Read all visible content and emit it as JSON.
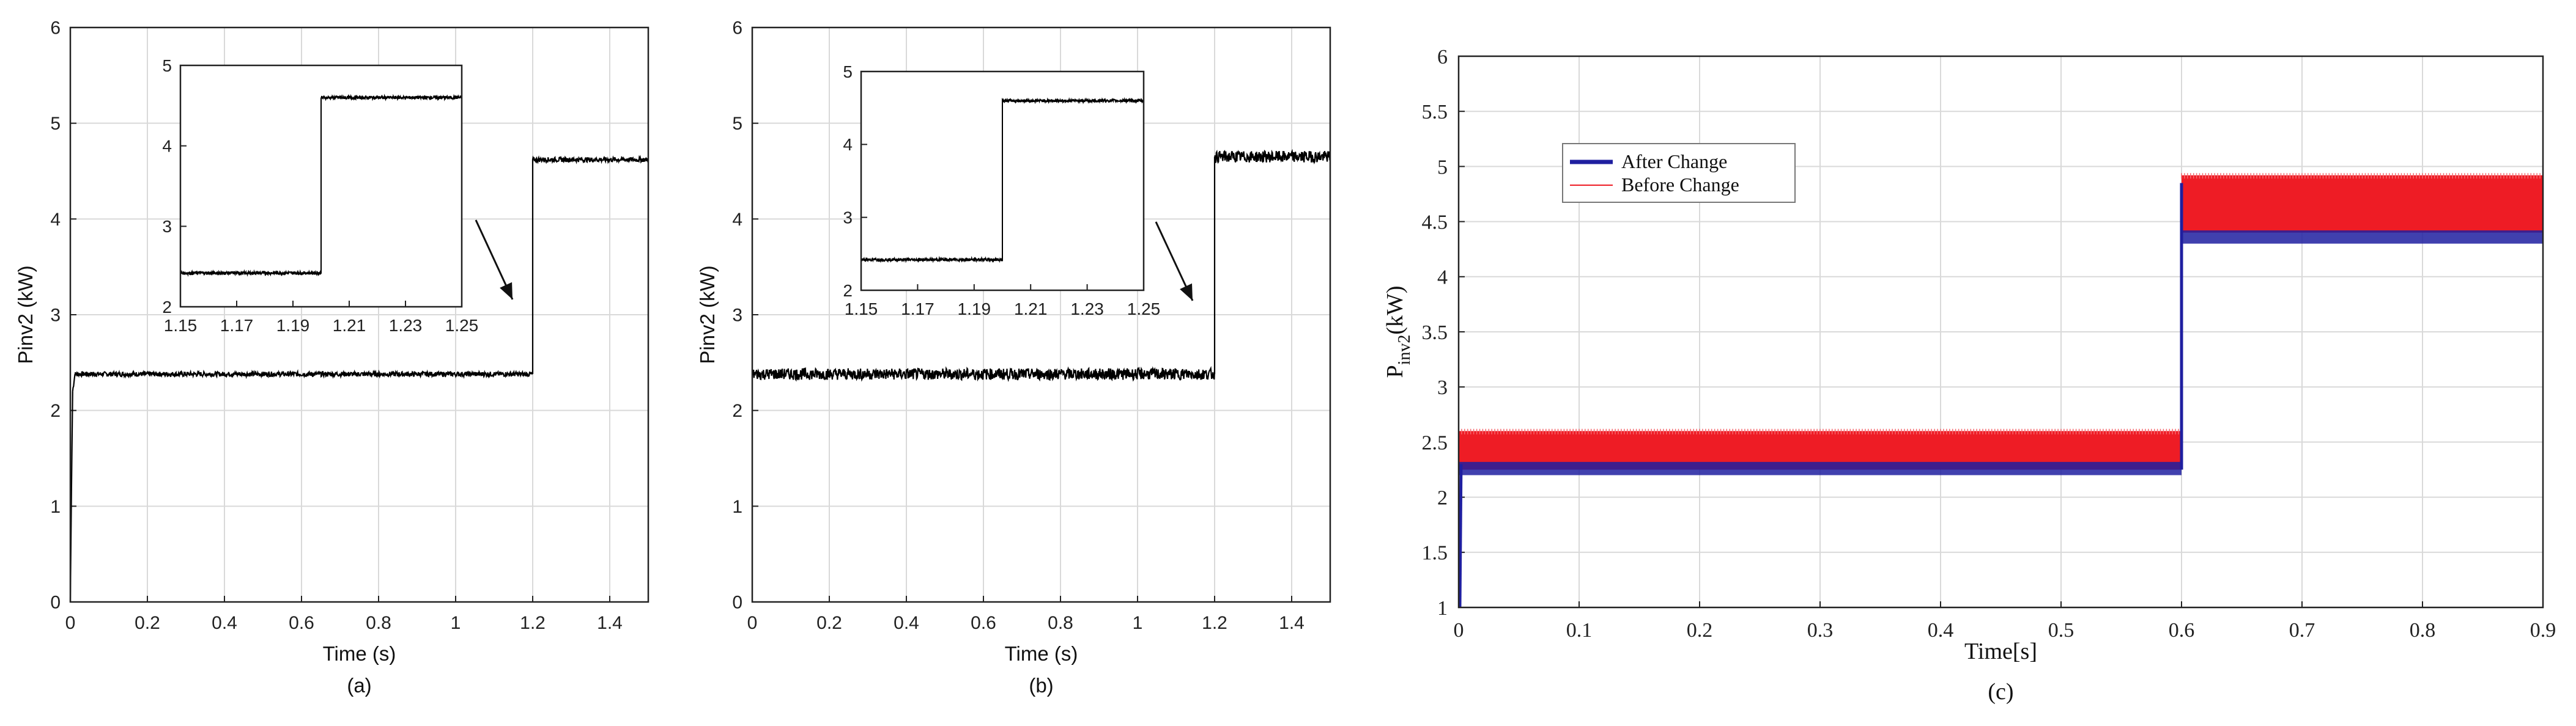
{
  "colors": {
    "trace": "#000000",
    "after_change": "#1f1fa0",
    "before_change": "#ee1c25",
    "grid": "#d9d9d9",
    "axis": "#222222"
  },
  "chart_data": [
    {
      "id": "a",
      "type": "line",
      "caption": "(a)",
      "xlabel": "Time (s)",
      "ylabel": "Pinv2 (kW)",
      "xlim": [
        0,
        1.5
      ],
      "ylim": [
        0,
        6
      ],
      "xticks": [
        0,
        0.2,
        0.4,
        0.6,
        0.8,
        1,
        1.2,
        1.4
      ],
      "xtick_labels": [
        "0",
        "0.2",
        "0.4",
        "0.6",
        "0.8",
        "1",
        "1.2",
        "1.4"
      ],
      "yticks": [
        0,
        1,
        2,
        3,
        4,
        5,
        6
      ],
      "ytick_labels": [
        "0",
        "1",
        "2",
        "3",
        "4",
        "5",
        "6"
      ],
      "grid": true,
      "series": [
        {
          "name": "Pinv2",
          "x": [
            0,
            0.003,
            0.006,
            0.012,
            1.2,
            1.2,
            1.5
          ],
          "y": [
            0,
            1.2,
            2.2,
            2.38,
            2.38,
            4.62,
            4.62
          ],
          "noise_kw": 0.025
        }
      ],
      "inset": {
        "xlim": [
          1.15,
          1.25
        ],
        "ylim": [
          2,
          5
        ],
        "xticks": [
          1.15,
          1.17,
          1.19,
          1.21,
          1.23,
          1.25
        ],
        "xtick_labels": [
          "1.15",
          "1.17",
          "1.19",
          "1.21",
          "1.23",
          "1.25"
        ],
        "yticks": [
          2,
          3,
          4,
          5
        ],
        "ytick_labels": [
          "2",
          "3",
          "4",
          "5"
        ],
        "series": {
          "x": [
            1.15,
            1.2,
            1.2,
            1.25
          ],
          "y": [
            2.42,
            2.42,
            4.6,
            4.6
          ],
          "noise_kw": 0.02
        }
      }
    },
    {
      "id": "b",
      "type": "line",
      "caption": "(b)",
      "xlabel": "Time (s)",
      "ylabel": "Pinv2 (kW)",
      "xlim": [
        0,
        1.5
      ],
      "ylim": [
        0,
        6
      ],
      "xticks": [
        0,
        0.2,
        0.4,
        0.6,
        0.8,
        1,
        1.2,
        1.4
      ],
      "xtick_labels": [
        "0",
        "0.2",
        "0.4",
        "0.6",
        "0.8",
        "1",
        "1.2",
        "1.4"
      ],
      "yticks": [
        0,
        1,
        2,
        3,
        4,
        5,
        6
      ],
      "ytick_labels": [
        "0",
        "1",
        "2",
        "3",
        "4",
        "5",
        "6"
      ],
      "grid": true,
      "series": [
        {
          "name": "Pinv2",
          "x": [
            0,
            1.2,
            1.2,
            1.5
          ],
          "y": [
            2.38,
            2.38,
            4.65,
            4.65
          ],
          "noise_kw": 0.06
        }
      ],
      "inset": {
        "xlim": [
          1.15,
          1.25
        ],
        "ylim": [
          2,
          5
        ],
        "xticks": [
          1.15,
          1.17,
          1.19,
          1.21,
          1.23,
          1.25
        ],
        "xtick_labels": [
          "1.15",
          "1.17",
          "1.19",
          "1.21",
          "1.23",
          "1.25"
        ],
        "yticks": [
          2,
          3,
          4,
          5
        ],
        "ytick_labels": [
          "2",
          "3",
          "4",
          "5"
        ],
        "series": {
          "x": [
            1.15,
            1.2,
            1.2,
            1.25
          ],
          "y": [
            2.42,
            2.42,
            4.6,
            4.6
          ],
          "noise_kw": 0.02
        }
      }
    },
    {
      "id": "c",
      "type": "line",
      "caption": "(c)",
      "xlabel": "Time[s]",
      "ylabel_main": "P",
      "ylabel_sub": "inv2",
      "ylabel_unit": "(kW)",
      "xlim": [
        0,
        0.9
      ],
      "ylim": [
        1,
        6
      ],
      "xticks": [
        0,
        0.1,
        0.2,
        0.3,
        0.4,
        0.5,
        0.6,
        0.7,
        0.8,
        0.9
      ],
      "xtick_labels": [
        "0",
        "0.1",
        "0.2",
        "0.3",
        "0.4",
        "0.5",
        "0.6",
        "0.7",
        "0.8",
        "0.9"
      ],
      "yticks": [
        1,
        1.5,
        2,
        2.5,
        3,
        3.5,
        4,
        4.5,
        5,
        5.5,
        6
      ],
      "ytick_labels": [
        "1",
        "1.5",
        "2",
        "2.5",
        "3",
        "3.5",
        "4",
        "4.5",
        "5",
        "5.5",
        "6"
      ],
      "grid": true,
      "legend": {
        "placement": "upper-left",
        "entries": [
          "After Change",
          "Before Change"
        ]
      },
      "series": [
        {
          "name": "After Change",
          "band": [
            [
              0,
              0.6,
              2.2,
              2.32
            ],
            [
              0.6,
              0.9,
              4.3,
              4.42
            ]
          ]
        },
        {
          "name": "Before Change",
          "band": [
            [
              0,
              0.6,
              2.25,
              2.6
            ],
            [
              0.6,
              0.9,
              4.4,
              4.92
            ]
          ]
        }
      ]
    }
  ]
}
